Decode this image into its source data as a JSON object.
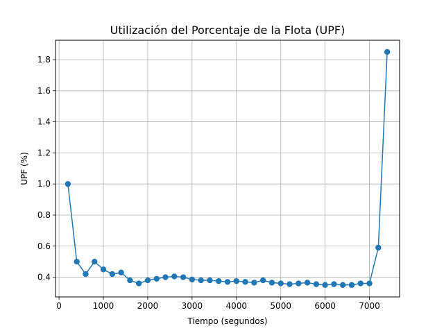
{
  "chart_data": {
    "type": "line",
    "title": "Utilización del Porcentaje de la Flota (UPF)",
    "xlabel": "Tiempo (segundos)",
    "ylabel": "UPF (%)",
    "xlim": [
      -80,
      7680
    ],
    "ylim": [
      0.273,
      1.925
    ],
    "xticks": [
      0,
      1000,
      2000,
      3000,
      4000,
      5000,
      6000,
      7000
    ],
    "xtick_labels": [
      "0",
      "1000",
      "2000",
      "3000",
      "4000",
      "5000",
      "6000",
      "7000"
    ],
    "yticks": [
      0.4,
      0.6,
      0.8,
      1.0,
      1.2,
      1.4,
      1.6,
      1.8
    ],
    "ytick_labels": [
      "0.4",
      "0.6",
      "0.8",
      "1.0",
      "1.2",
      "1.4",
      "1.6",
      "1.8"
    ],
    "grid": true,
    "color": "#1f77b4",
    "marker": "circle",
    "series": [
      {
        "x": [
          200,
          400,
          600,
          800,
          1000,
          1200,
          1400,
          1600,
          1800,
          2000,
          2200,
          2400,
          2600,
          2800,
          3000,
          3200,
          3400,
          3600,
          3800,
          4000,
          4200,
          4400,
          4600,
          4800,
          5000,
          5200,
          5400,
          5600,
          5800,
          6000,
          6200,
          6400,
          6600,
          6800,
          7000,
          7200,
          7400
        ],
        "y": [
          1.0,
          0.5,
          0.42,
          0.5,
          0.45,
          0.42,
          0.43,
          0.38,
          0.36,
          0.38,
          0.39,
          0.4,
          0.405,
          0.4,
          0.385,
          0.38,
          0.38,
          0.375,
          0.37,
          0.375,
          0.37,
          0.365,
          0.38,
          0.365,
          0.36,
          0.355,
          0.36,
          0.365,
          0.355,
          0.35,
          0.355,
          0.35,
          0.35,
          0.36,
          0.36,
          0.59,
          1.85
        ]
      }
    ]
  }
}
